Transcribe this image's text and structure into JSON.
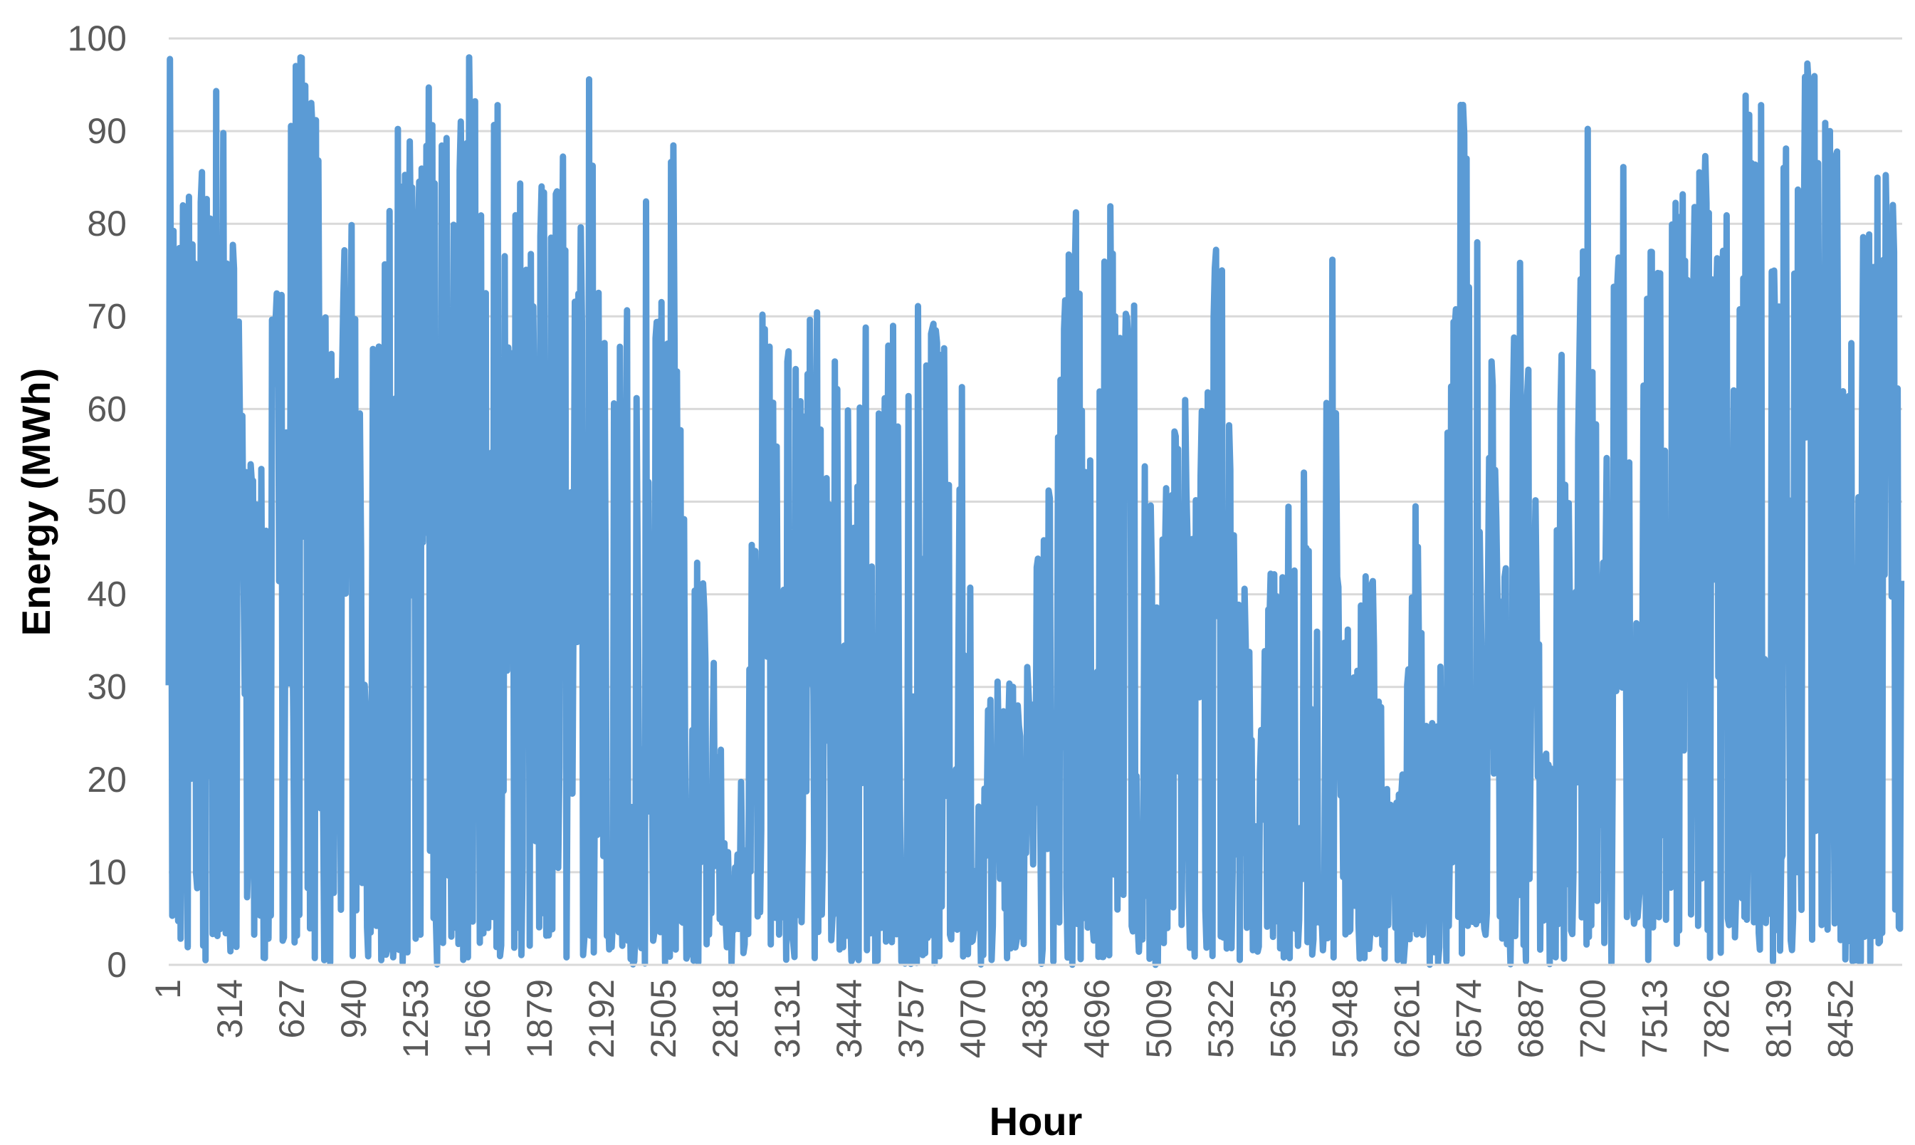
{
  "chart_data": {
    "type": "line",
    "title": "",
    "xlabel": "Hour",
    "ylabel": "Energy (MWh)",
    "ylim": [
      0,
      100
    ],
    "xlim": [
      1,
      8760
    ],
    "y_ticks": [
      "0",
      "10",
      "20",
      "30",
      "40",
      "50",
      "60",
      "70",
      "80",
      "90",
      "100"
    ],
    "x_ticks": [
      "1",
      "314",
      "627",
      "940",
      "1253",
      "1566",
      "1879",
      "2192",
      "2505",
      "2818",
      "3131",
      "3444",
      "3757",
      "4070",
      "4383",
      "4696",
      "5009",
      "5322",
      "5635",
      "5948",
      "6261",
      "6574",
      "6887",
      "7200",
      "7513",
      "7826",
      "8139",
      "8452"
    ],
    "grid": "horizontal",
    "legend": "none",
    "series_color": "#5B9BD5",
    "envelope": [
      [
        1,
        99
      ],
      [
        60,
        91
      ],
      [
        120,
        89
      ],
      [
        180,
        91
      ],
      [
        250,
        100
      ],
      [
        320,
        81
      ],
      [
        400,
        55
      ],
      [
        470,
        63
      ],
      [
        540,
        72
      ],
      [
        610,
        97
      ],
      [
        680,
        99
      ],
      [
        740,
        94
      ],
      [
        830,
        66
      ],
      [
        920,
        92
      ],
      [
        1000,
        57
      ],
      [
        1080,
        83
      ],
      [
        1150,
        94
      ],
      [
        1240,
        88
      ],
      [
        1320,
        99
      ],
      [
        1400,
        96
      ],
      [
        1470,
        99
      ],
      [
        1540,
        98
      ],
      [
        1600,
        86
      ],
      [
        1660,
        94
      ],
      [
        1720,
        74
      ],
      [
        1780,
        88
      ],
      [
        1840,
        79
      ],
      [
        1920,
        93
      ],
      [
        2000,
        90
      ],
      [
        2060,
        83
      ],
      [
        2120,
        100
      ],
      [
        2190,
        70
      ],
      [
        2260,
        79
      ],
      [
        2330,
        80
      ],
      [
        2400,
        86
      ],
      [
        2480,
        72
      ],
      [
        2550,
        94
      ],
      [
        2620,
        41
      ],
      [
        2680,
        45
      ],
      [
        2740,
        39
      ],
      [
        2800,
        22
      ],
      [
        2860,
        15
      ],
      [
        2920,
        27
      ],
      [
        2980,
        70
      ],
      [
        3030,
        76
      ],
      [
        3100,
        63
      ],
      [
        3150,
        70
      ],
      [
        3210,
        60
      ],
      [
        3260,
        80
      ],
      [
        3320,
        57
      ],
      [
        3380,
        77
      ],
      [
        3440,
        58
      ],
      [
        3520,
        70
      ],
      [
        3600,
        60
      ],
      [
        3660,
        75
      ],
      [
        3720,
        76
      ],
      [
        3780,
        84
      ],
      [
        3840,
        67
      ],
      [
        3900,
        78
      ],
      [
        3960,
        42
      ],
      [
        4020,
        70
      ],
      [
        4080,
        23
      ],
      [
        4140,
        31
      ],
      [
        4200,
        31
      ],
      [
        4260,
        31
      ],
      [
        4320,
        32
      ],
      [
        4380,
        43
      ],
      [
        4440,
        50
      ],
      [
        4520,
        71
      ],
      [
        4580,
        86
      ],
      [
        4640,
        58
      ],
      [
        4700,
        70
      ],
      [
        4760,
        83
      ],
      [
        4820,
        71
      ],
      [
        4880,
        77
      ],
      [
        4940,
        53
      ],
      [
        5000,
        45
      ],
      [
        5060,
        60
      ],
      [
        5120,
        66
      ],
      [
        5180,
        50
      ],
      [
        5260,
        75
      ],
      [
        5320,
        85
      ],
      [
        5380,
        47
      ],
      [
        5440,
        43
      ],
      [
        5500,
        25
      ],
      [
        5560,
        43
      ],
      [
        5620,
        43
      ],
      [
        5680,
        59
      ],
      [
        5740,
        53
      ],
      [
        5800,
        37
      ],
      [
        5880,
        80
      ],
      [
        5940,
        40
      ],
      [
        6000,
        35
      ],
      [
        6060,
        50
      ],
      [
        6120,
        33
      ],
      [
        6180,
        16
      ],
      [
        6240,
        21
      ],
      [
        6300,
        51
      ],
      [
        6360,
        25
      ],
      [
        6420,
        29
      ],
      [
        6480,
        70
      ],
      [
        6540,
        98
      ],
      [
        6600,
        80
      ],
      [
        6660,
        97
      ],
      [
        6720,
        42
      ],
      [
        6780,
        66
      ],
      [
        6860,
        88
      ],
      [
        6920,
        40
      ],
      [
        6980,
        20
      ],
      [
        7040,
        67
      ],
      [
        7100,
        40
      ],
      [
        7160,
        99
      ],
      [
        7240,
        38
      ],
      [
        7300,
        82
      ],
      [
        7360,
        100
      ],
      [
        7420,
        36
      ],
      [
        7480,
        88
      ],
      [
        7540,
        82
      ],
      [
        7600,
        94
      ],
      [
        7680,
        80
      ],
      [
        7760,
        92
      ],
      [
        7820,
        79
      ],
      [
        7880,
        83
      ],
      [
        7940,
        93
      ],
      [
        8000,
        96
      ],
      [
        8060,
        94
      ],
      [
        8120,
        77
      ],
      [
        8180,
        96
      ],
      [
        8240,
        93
      ],
      [
        8300,
        100
      ],
      [
        8360,
        92
      ],
      [
        8420,
        100
      ],
      [
        8480,
        69
      ],
      [
        8540,
        82
      ],
      [
        8600,
        87
      ],
      [
        8660,
        87
      ],
      [
        8760,
        81
      ]
    ]
  }
}
